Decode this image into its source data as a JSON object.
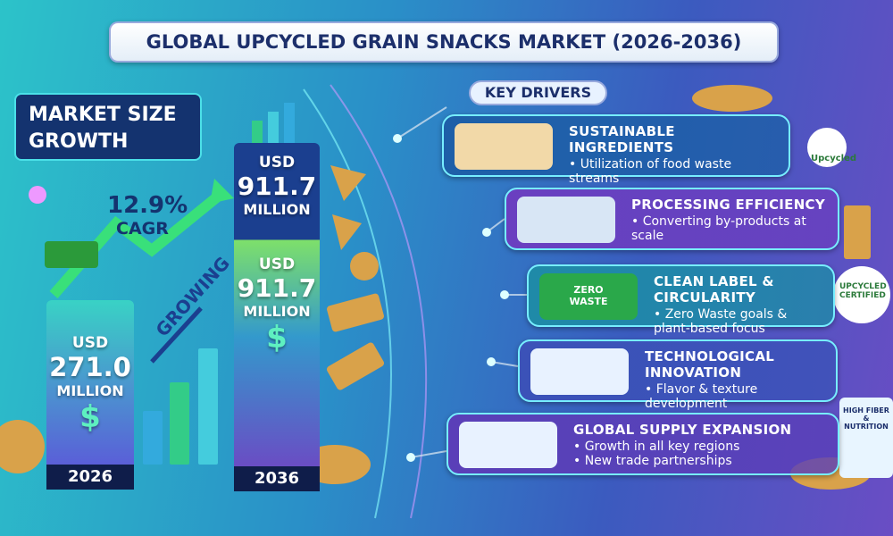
{
  "header": {
    "title": "GLOBAL UPCYCLED GRAIN SNACKS MARKET (2026-2036)"
  },
  "market": {
    "title": "MARKET SIZE GROWTH",
    "cagr": "12.9%",
    "cagr_label": "CAGR",
    "growing": "GROWING",
    "bar_2026": {
      "currency": "USD",
      "value": "271.0",
      "unit": "MILLION",
      "symbol": "$",
      "year": "2026"
    },
    "bar_2036": {
      "top": {
        "currency": "USD",
        "value": "911.7",
        "unit": "MILLION"
      },
      "middle": {
        "currency": "USD",
        "value": "911.7",
        "unit": "MILLION"
      },
      "symbol": "$",
      "year": "2036"
    }
  },
  "drivers": {
    "title": "KEY DRIVERS",
    "items": [
      {
        "title": "SUSTAINABLE INGREDIENTS",
        "bullets": [
          "• Utilization of food waste streams"
        ]
      },
      {
        "title": "PROCESSING EFFICIENCY",
        "bullets": [
          "• Converting by-products at scale"
        ]
      },
      {
        "title": "CLEAN LABEL & CIRCULARITY",
        "bullets": [
          "• Zero Waste goals & plant-based focus"
        ]
      },
      {
        "title": "TECHNOLOGICAL INNOVATION",
        "bullets": [
          "• Flavor & texture development"
        ]
      },
      {
        "title": "GLOBAL SUPPLY EXPANSION",
        "bullets": [
          "• Growth in all key regions",
          "• New trade partnerships"
        ]
      }
    ]
  },
  "badges": {
    "upcycled": "Upcycled",
    "zero": "ZERO",
    "waste": "WASTE",
    "certified_top": "UPCYCLED",
    "certified_bottom": "CERTIFIED",
    "pack": "HIGH FIBER & NUTRITION"
  }
}
